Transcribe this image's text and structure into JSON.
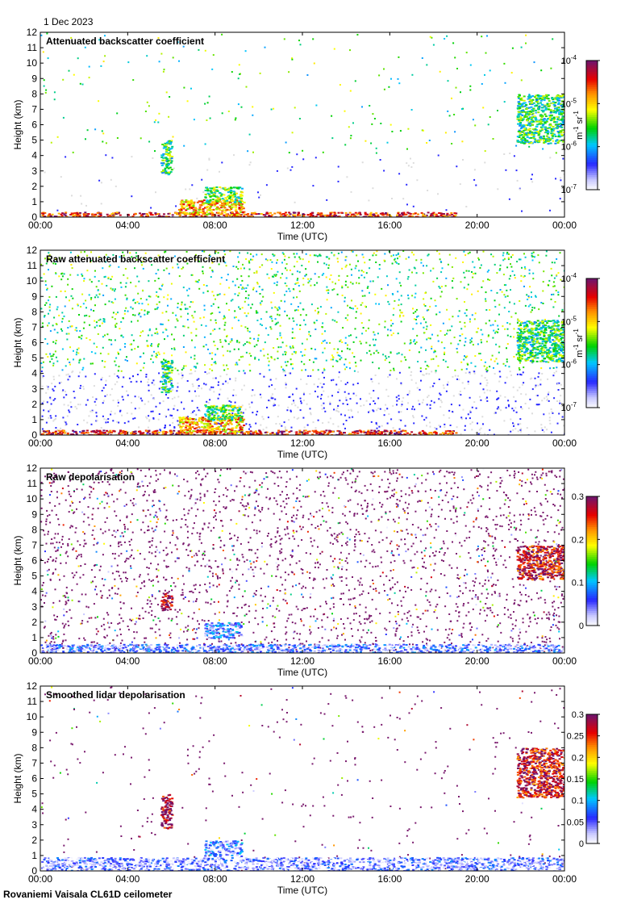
{
  "date_label": "1 Dec 2023",
  "footer": "Rovaniemi Vaisala CL61D ceilometer",
  "chart_data": [
    {
      "type": "heatmap",
      "title": "Attenuated backscatter coefficient",
      "xlabel": "Time (UTC)",
      "ylabel": "Height (km)",
      "xticks": [
        "00:00",
        "04:00",
        "08:00",
        "12:00",
        "16:00",
        "20:00",
        "00:00"
      ],
      "xlim": [
        0,
        24
      ],
      "ylim": [
        0,
        12
      ],
      "yticks": [
        "0",
        "1",
        "2",
        "3",
        "4",
        "5",
        "6",
        "7",
        "8",
        "9",
        "10",
        "11",
        "12"
      ],
      "colorbar": {
        "scale": "log",
        "range": [
          1e-07,
          0.0001
        ],
        "ticks": [
          {
            "base": "10",
            "exp": "-7"
          },
          {
            "base": "10",
            "exp": "-6"
          },
          {
            "base": "10",
            "exp": "-5"
          },
          {
            "base": "10",
            "exp": "-4"
          }
        ],
        "unit": {
          "a": "m",
          "a_exp": "-1",
          "b": "sr",
          "b_exp": "-1"
        }
      },
      "palette": "rainbow",
      "noise_color": "#dcdcdc",
      "features": [
        {
          "name": "boundary layer",
          "t": [
            0,
            19
          ],
          "h": [
            0,
            0.35
          ],
          "level": 0.85
        },
        {
          "name": "cloud 05-06h",
          "t": [
            5.5,
            6.0
          ],
          "h": [
            2.8,
            5.0
          ],
          "level": 0.45
        },
        {
          "name": "low cloud 06-09h",
          "t": [
            6.3,
            9.3
          ],
          "h": [
            0.2,
            1.2
          ],
          "level": 0.7
        },
        {
          "name": "layer 07-09h",
          "t": [
            7.5,
            9.2
          ],
          "h": [
            1.0,
            2.0
          ],
          "level": 0.5
        },
        {
          "name": "cloud 22-24h",
          "t": [
            21.8,
            24
          ],
          "h": [
            4.8,
            8.0
          ],
          "level": 0.45
        }
      ]
    },
    {
      "type": "heatmap",
      "title": "Raw attenuated backscatter coefficient",
      "xlabel": "Time (UTC)",
      "ylabel": "Height (km)",
      "xticks": [
        "00:00",
        "04:00",
        "08:00",
        "12:00",
        "16:00",
        "20:00",
        "00:00"
      ],
      "xlim": [
        0,
        24
      ],
      "ylim": [
        0,
        12
      ],
      "yticks": [
        "0",
        "1",
        "2",
        "3",
        "4",
        "5",
        "6",
        "7",
        "8",
        "9",
        "10",
        "11",
        "12"
      ],
      "colorbar": {
        "scale": "log",
        "range": [
          1e-07,
          0.0001
        ],
        "ticks": [
          {
            "base": "10",
            "exp": "-7"
          },
          {
            "base": "10",
            "exp": "-6"
          },
          {
            "base": "10",
            "exp": "-5"
          },
          {
            "base": "10",
            "exp": "-4"
          }
        ],
        "unit": {
          "a": "m",
          "a_exp": "-1",
          "b": "sr",
          "b_exp": "-1"
        }
      },
      "palette": "rainbow",
      "noise_color": "#dcdcdc",
      "features": [
        {
          "name": "boundary layer",
          "t": [
            0,
            19
          ],
          "h": [
            0,
            0.35
          ],
          "level": 0.85
        },
        {
          "name": "cloud 05-06h",
          "t": [
            5.5,
            6.0
          ],
          "h": [
            2.8,
            5.0
          ],
          "level": 0.45
        },
        {
          "name": "low cloud 06-09h",
          "t": [
            6.3,
            9.3
          ],
          "h": [
            0.2,
            1.2
          ],
          "level": 0.7
        },
        {
          "name": "layer 07-09h",
          "t": [
            7.5,
            9.2
          ],
          "h": [
            1.0,
            2.0
          ],
          "level": 0.5
        },
        {
          "name": "cloud 22-24h",
          "t": [
            21.8,
            24
          ],
          "h": [
            4.8,
            7.5
          ],
          "level": 0.45
        }
      ]
    },
    {
      "type": "heatmap",
      "title": "Raw depolarisation",
      "xlabel": "Time (UTC)",
      "ylabel": "Height (km)",
      "xticks": [
        "00:00",
        "04:00",
        "08:00",
        "12:00",
        "16:00",
        "20:00",
        "00:00"
      ],
      "xlim": [
        0,
        24
      ],
      "ylim": [
        0,
        12
      ],
      "yticks": [
        "0",
        "1",
        "2",
        "3",
        "4",
        "5",
        "6",
        "7",
        "8",
        "9",
        "10",
        "11",
        "12"
      ],
      "colorbar": {
        "scale": "linear",
        "range": [
          0,
          0.3
        ],
        "ticks": [
          "0",
          "0.1",
          "0.2",
          "0.3"
        ],
        "unit": null
      },
      "palette": "rainbow",
      "noise_color": "#7a1a6e",
      "features": [
        {
          "name": "boundary layer",
          "t": [
            0,
            24
          ],
          "h": [
            0,
            0.6
          ],
          "level": 0.15
        },
        {
          "name": "cloud 05-06h",
          "t": [
            5.5,
            6.0
          ],
          "h": [
            2.8,
            4.0
          ],
          "level": 0.95
        },
        {
          "name": "layer 07-09h",
          "t": [
            7.5,
            9.2
          ],
          "h": [
            1.0,
            2.0
          ],
          "level": 0.2
        },
        {
          "name": "cloud 22-24h",
          "t": [
            21.8,
            24
          ],
          "h": [
            4.8,
            7.0
          ],
          "level": 0.9
        }
      ]
    },
    {
      "type": "heatmap",
      "title": "Smoothed lidar depolarisation",
      "xlabel": "Time (UTC)",
      "ylabel": "Height (km)",
      "xticks": [
        "00:00",
        "04:00",
        "08:00",
        "12:00",
        "16:00",
        "20:00",
        "00:00"
      ],
      "xlim": [
        0,
        24
      ],
      "ylim": [
        0,
        12
      ],
      "yticks": [
        "0",
        "1",
        "2",
        "3",
        "4",
        "5",
        "6",
        "7",
        "8",
        "9",
        "10",
        "11",
        "12"
      ],
      "colorbar": {
        "scale": "linear",
        "range": [
          0,
          0.3
        ],
        "ticks": [
          "0",
          "0.05",
          "0.1",
          "0.15",
          "0.2",
          "0.25",
          "0.3"
        ],
        "unit": null
      },
      "palette": "rainbow",
      "noise_color": "#7a1a6e",
      "features": [
        {
          "name": "boundary layer",
          "t": [
            0,
            24
          ],
          "h": [
            0,
            0.9
          ],
          "level": 0.12
        },
        {
          "name": "cloud 05-06h",
          "t": [
            5.5,
            6.0
          ],
          "h": [
            2.8,
            5.0
          ],
          "level": 0.95
        },
        {
          "name": "layer 07-09h",
          "t": [
            7.5,
            9.2
          ],
          "h": [
            1.0,
            2.0
          ],
          "level": 0.2
        },
        {
          "name": "cloud 22-24h",
          "t": [
            21.8,
            24
          ],
          "h": [
            4.8,
            8.0
          ],
          "level": 0.9
        }
      ]
    }
  ]
}
